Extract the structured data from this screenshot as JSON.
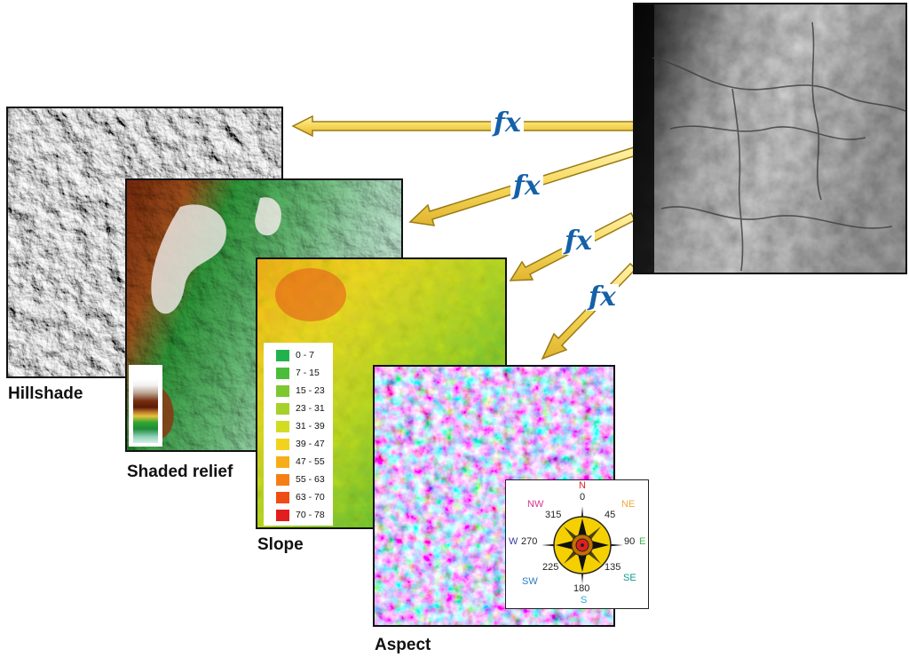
{
  "captions": {
    "hillshade": "Hillshade",
    "shaded_relief": "Shaded relief",
    "slope": "Slope",
    "aspect": "Aspect"
  },
  "function_label": "fx",
  "slope_legend": [
    {
      "label": "0 - 7",
      "color": "#22b24c"
    },
    {
      "label": "7 - 15",
      "color": "#4cbd3a"
    },
    {
      "label": "15 - 23",
      "color": "#7ec730"
    },
    {
      "label": "23 - 31",
      "color": "#a6d12a"
    },
    {
      "label": "31 - 39",
      "color": "#d2dc24"
    },
    {
      "label": "39 - 47",
      "color": "#f2d21e"
    },
    {
      "label": "47 - 55",
      "color": "#f7ad1a"
    },
    {
      "label": "55 - 63",
      "color": "#f57f16"
    },
    {
      "label": "63 - 70",
      "color": "#ef4d16"
    },
    {
      "label": "70 - 78",
      "color": "#e21d1d"
    }
  ],
  "compass": {
    "directions": {
      "N": "N",
      "NE": "NE",
      "E": "E",
      "SE": "SE",
      "S": "S",
      "SW": "SW",
      "W": "W",
      "NW": "NW"
    },
    "degrees": {
      "d0": "0",
      "d45": "45",
      "d90": "90",
      "d135": "135",
      "d180": "180",
      "d225": "225",
      "d270": "270",
      "d315": "315"
    },
    "colors": {
      "N": "#e01f26",
      "NE": "#f0a93b",
      "E": "#3cb54a",
      "SE": "#0f9a8e",
      "S": "#27a9e1",
      "SW": "#2a7cc0",
      "W": "#3a3b9c",
      "NW": "#d6358f"
    }
  },
  "colors": {
    "arrow_fill": "#f6d75a",
    "arrow_stroke": "#9a7a14",
    "fx_text": "#1560a8"
  }
}
